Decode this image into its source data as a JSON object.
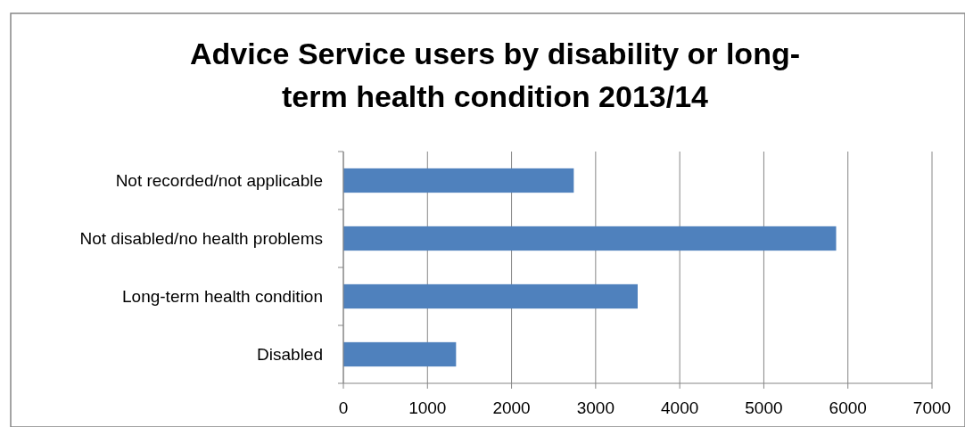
{
  "chart_data": {
    "type": "bar",
    "orientation": "horizontal",
    "title": "Advice Service users by disability or long-term health condition 2013/14",
    "categories": [
      "Not recorded/not applicable",
      "Not disabled/no health problems",
      "Long-term health condition",
      "Disabled"
    ],
    "values": [
      2740,
      5860,
      3500,
      1340
    ],
    "color": "#4f81bd",
    "xlim": [
      0,
      7000
    ],
    "xticks": [
      0,
      1000,
      2000,
      3000,
      4000,
      5000,
      6000,
      7000
    ],
    "grid": "x"
  }
}
